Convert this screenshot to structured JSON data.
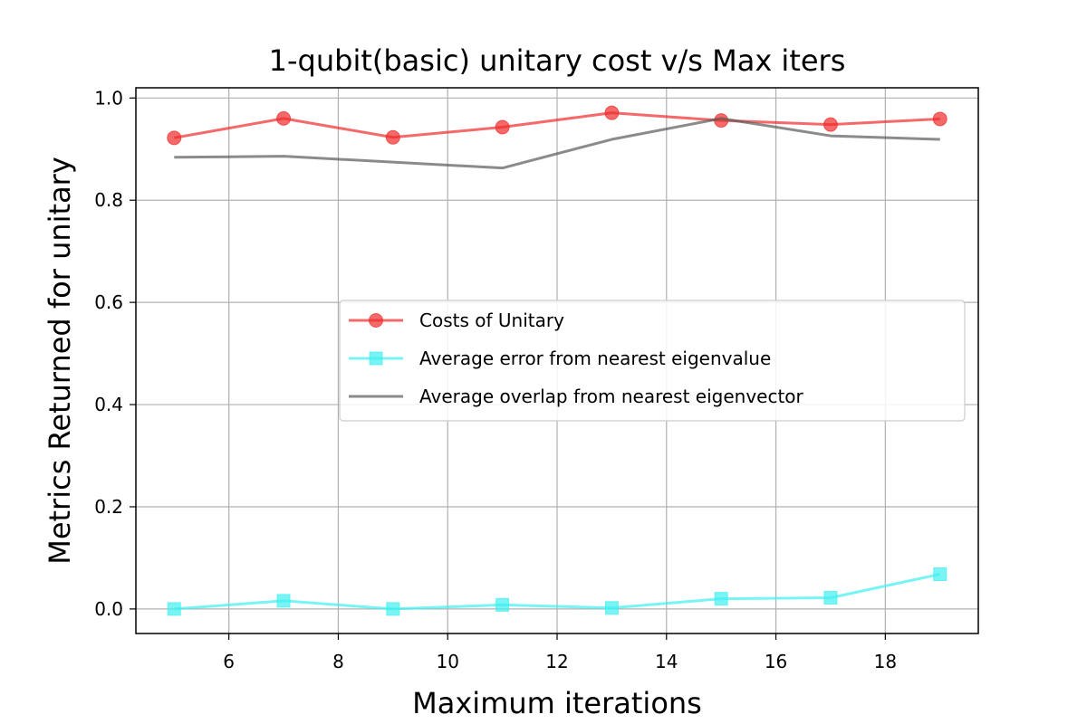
{
  "chart_data": {
    "type": "line",
    "title": "1-qubit(basic) unitary cost v/s Max iters",
    "xlabel": "Maximum iterations",
    "ylabel": "Metrics Returned for unitary",
    "xlim": [
      4.3,
      19.7
    ],
    "ylim": [
      -0.048,
      1.02
    ],
    "xticks": [
      6,
      8,
      10,
      12,
      14,
      16,
      18
    ],
    "xtick_labels": [
      "6",
      "8",
      "10",
      "12",
      "14",
      "16",
      "18"
    ],
    "yticks": [
      0.0,
      0.2,
      0.4,
      0.6,
      0.8,
      1.0
    ],
    "ytick_labels": [
      "0.0",
      "0.2",
      "0.4",
      "0.6",
      "0.8",
      "1.0"
    ],
    "grid": true,
    "legend_position": "center-right",
    "series": [
      {
        "name": "Costs of Unitary",
        "color": "#ef2b2b",
        "marker": "circle",
        "x": [
          5,
          7,
          9,
          11,
          13,
          15,
          17,
          19
        ],
        "values": [
          0.922,
          0.96,
          0.923,
          0.943,
          0.971,
          0.956,
          0.948,
          0.959
        ]
      },
      {
        "name": "Average error from nearest eigenvalue",
        "color": "#3ff0f0",
        "marker": "square",
        "x": [
          5,
          7,
          9,
          11,
          13,
          15,
          17,
          19
        ],
        "values": [
          0.0,
          0.016,
          0.0,
          0.008,
          0.002,
          0.02,
          0.022,
          0.068
        ]
      },
      {
        "name": "Average overlap from nearest eigenvector",
        "color": "#5a5a5a",
        "marker": "none",
        "x": [
          5,
          7,
          11,
          13,
          15,
          17,
          19
        ],
        "values": [
          0.884,
          0.886,
          0.863,
          0.919,
          0.96,
          0.926,
          0.919
        ]
      }
    ]
  }
}
